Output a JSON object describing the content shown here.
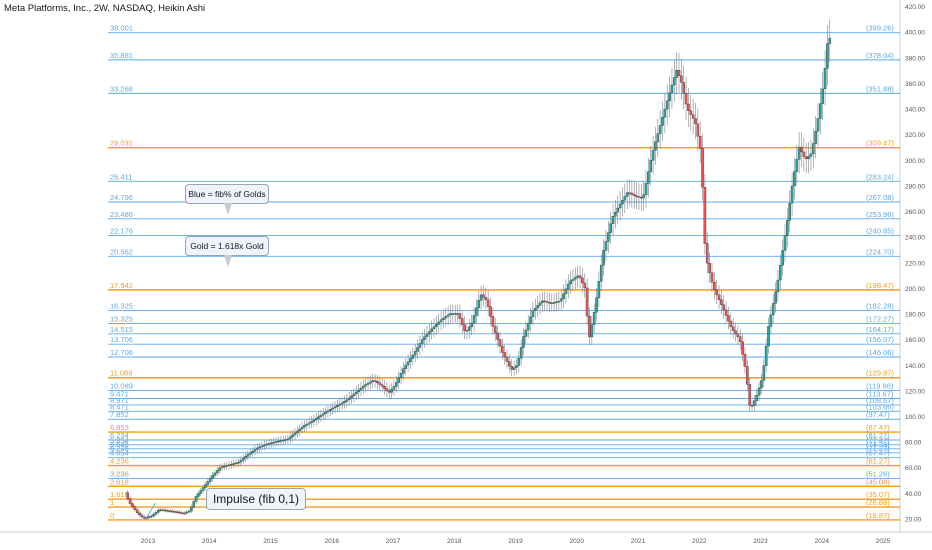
{
  "title": "Meta Platforms, Inc., 2W, NASDAQ, Heikin Ashi",
  "annotations": {
    "blue_note": "Blue = fib% of Golds",
    "gold_note": "Gold = 1.618x Gold",
    "impulse_note": "Impulse (fib 0,1)"
  },
  "colors": {
    "gold": "#f59c1a",
    "blue": "#5ea9e6",
    "up_candle": "#26a69a",
    "down_candle": "#ef5350",
    "axis_text": "#555555"
  },
  "chart_data": {
    "type": "candlestick",
    "title": "Meta Platforms, Inc., 2W, NASDAQ, Heikin Ashi",
    "xlabel": "",
    "ylabel": "",
    "x_ticks": [
      "2013",
      "2014",
      "2015",
      "2016",
      "2017",
      "2018",
      "2019",
      "2020",
      "2021",
      "2022",
      "2023",
      "2024",
      "2025"
    ],
    "y_ticks": [
      "20.00",
      "40.00",
      "60.00",
      "80.00",
      "100.00",
      "120.00",
      "140.00",
      "160.00",
      "180.00",
      "200.00",
      "220.00",
      "240.00",
      "260.00",
      "280.00",
      "300.00",
      "320.00",
      "340.00",
      "360.00",
      "380.00",
      "400.00",
      "420.00"
    ],
    "ylim": [
      11,
      424
    ],
    "xlim": [
      2012.6,
      2025.45
    ],
    "grid": false,
    "fib_levels": [
      {
        "ratio": "38.001",
        "price": 399.26,
        "price_label": "(399.26)",
        "color": "blue"
      },
      {
        "ratio": "35.881",
        "price": 378.04,
        "price_label": "(378.04)",
        "color": "blue"
      },
      {
        "ratio": "33.268",
        "price": 351.88,
        "price_label": "(351.88)",
        "color": "blue"
      },
      {
        "ratio": "29.031",
        "price": 309.47,
        "price_label": "(309.47)",
        "color": "gold"
      },
      {
        "ratio": "26.411",
        "price": 283.24,
        "price_label": "(283.24)",
        "color": "blue"
      },
      {
        "ratio": "24.796",
        "price": 267.08,
        "price_label": "(267.08)",
        "color": "blue"
      },
      {
        "ratio": "23.486",
        "price": 253.96,
        "price_label": "(253.96)",
        "color": "blue"
      },
      {
        "ratio": "22.176",
        "price": 240.85,
        "price_label": "(240.85)",
        "color": "blue"
      },
      {
        "ratio": "20.562",
        "price": 224.7,
        "price_label": "(224.70)",
        "color": "blue"
      },
      {
        "ratio": "17.942",
        "price": 198.47,
        "price_label": "(198.47)",
        "color": "gold"
      },
      {
        "ratio": "16.325",
        "price": 182.28,
        "price_label": "(182.28)",
        "color": "blue"
      },
      {
        "ratio": "15.325",
        "price": 172.27,
        "price_label": "(172.27)",
        "color": "blue"
      },
      {
        "ratio": "14.515",
        "price": 164.17,
        "price_label": "(164.17)",
        "color": "blue"
      },
      {
        "ratio": "13.706",
        "price": 156.07,
        "price_label": "(156.07)",
        "color": "blue"
      },
      {
        "ratio": "12.706",
        "price": 146.06,
        "price_label": "(146.06)",
        "color": "blue"
      },
      {
        "ratio": "11.089",
        "price": 129.87,
        "price_label": "(129.87)",
        "color": "gold"
      },
      {
        "ratio": "10.089",
        "price": 119.86,
        "price_label": "(119.86)",
        "color": "blue"
      },
      {
        "ratio": "9.471",
        "price": 113.67,
        "price_label": "(113.67)",
        "color": "blue"
      },
      {
        "ratio": "8.971",
        "price": 108.67,
        "price_label": "(108.67)",
        "color": "blue"
      },
      {
        "ratio": "8.471",
        "price": 103.66,
        "price_label": "(103.66)",
        "color": "blue"
      },
      {
        "ratio": "7.852",
        "price": 97.47,
        "price_label": "(97.47)",
        "color": "blue"
      },
      {
        "ratio": "6.853",
        "price": 87.47,
        "price_label": "(87.47)",
        "color": "gold"
      },
      {
        "ratio": "6.234",
        "price": 81.27,
        "price_label": "(81.27)",
        "color": "blue"
      },
      {
        "ratio": "5.854",
        "price": 77.47,
        "price_label": "(77.47)",
        "color": "blue"
      },
      {
        "ratio": "5.545",
        "price": 74.38,
        "price_label": "(74.38)",
        "color": "blue"
      },
      {
        "ratio": "5.236",
        "price": 71.27,
        "price_label": "(71.27)",
        "color": "blue"
      },
      {
        "ratio": "4.854",
        "price": 67.47,
        "price_label": "(67.47)",
        "color": "blue"
      },
      {
        "ratio": "4.236",
        "price": 61.27,
        "price_label": "(61.27)",
        "color": "gold"
      },
      {
        "ratio": "3.236",
        "price": 51.26,
        "price_label": "(51.26)",
        "color": "blue"
      },
      {
        "ratio": "2.618",
        "price": 45.08,
        "price_label": "(45.08)",
        "color": "gold"
      },
      {
        "ratio": "1.618",
        "price": 35.07,
        "price_label": "(35.07)",
        "color": "gold"
      },
      {
        "ratio": "1",
        "price": 28.88,
        "price_label": "(28.88)",
        "color": "gold"
      },
      {
        "ratio": "0",
        "price": 18.87,
        "price_label": "(18.87)",
        "color": "gold"
      }
    ],
    "price_path": [
      [
        2012.65,
        40
      ],
      [
        2012.72,
        32
      ],
      [
        2012.85,
        24
      ],
      [
        2012.95,
        20
      ],
      [
        2013.08,
        22
      ],
      [
        2013.2,
        27
      ],
      [
        2013.35,
        26
      ],
      [
        2013.5,
        25
      ],
      [
        2013.6,
        24
      ],
      [
        2013.7,
        26
      ],
      [
        2013.8,
        37
      ],
      [
        2013.95,
        46
      ],
      [
        2014.08,
        54
      ],
      [
        2014.2,
        60
      ],
      [
        2014.35,
        62
      ],
      [
        2014.5,
        64
      ],
      [
        2014.65,
        70
      ],
      [
        2014.8,
        75
      ],
      [
        2014.95,
        78
      ],
      [
        2015.1,
        80
      ],
      [
        2015.3,
        82
      ],
      [
        2015.45,
        88
      ],
      [
        2015.55,
        92
      ],
      [
        2015.7,
        96
      ],
      [
        2015.82,
        100
      ],
      [
        2015.95,
        104
      ],
      [
        2016.1,
        108
      ],
      [
        2016.25,
        112
      ],
      [
        2016.4,
        118
      ],
      [
        2016.55,
        124
      ],
      [
        2016.7,
        128
      ],
      [
        2016.85,
        123
      ],
      [
        2016.95,
        118
      ],
      [
        2017.05,
        124
      ],
      [
        2017.2,
        138
      ],
      [
        2017.35,
        148
      ],
      [
        2017.5,
        160
      ],
      [
        2017.65,
        168
      ],
      [
        2017.8,
        175
      ],
      [
        2017.95,
        180
      ],
      [
        2018.08,
        180
      ],
      [
        2018.2,
        165
      ],
      [
        2018.3,
        172
      ],
      [
        2018.45,
        195
      ],
      [
        2018.55,
        190
      ],
      [
        2018.65,
        170
      ],
      [
        2018.8,
        150
      ],
      [
        2018.95,
        136
      ],
      [
        2019.05,
        140
      ],
      [
        2019.15,
        162
      ],
      [
        2019.3,
        182
      ],
      [
        2019.45,
        190
      ],
      [
        2019.6,
        188
      ],
      [
        2019.75,
        190
      ],
      [
        2019.9,
        205
      ],
      [
        2020.05,
        210
      ],
      [
        2020.15,
        200
      ],
      [
        2020.22,
        160
      ],
      [
        2020.32,
        185
      ],
      [
        2020.45,
        228
      ],
      [
        2020.6,
        255
      ],
      [
        2020.72,
        265
      ],
      [
        2020.85,
        275
      ],
      [
        2020.95,
        272
      ],
      [
        2021.1,
        270
      ],
      [
        2021.25,
        305
      ],
      [
        2021.4,
        330
      ],
      [
        2021.55,
        355
      ],
      [
        2021.65,
        370
      ],
      [
        2021.72,
        362
      ],
      [
        2021.82,
        340
      ],
      [
        2021.95,
        330
      ],
      [
        2022.05,
        305
      ],
      [
        2022.12,
        225
      ],
      [
        2022.25,
        200
      ],
      [
        2022.4,
        185
      ],
      [
        2022.55,
        168
      ],
      [
        2022.68,
        160
      ],
      [
        2022.78,
        135
      ],
      [
        2022.85,
        105
      ],
      [
        2022.95,
        115
      ],
      [
        2023.05,
        130
      ],
      [
        2023.15,
        170
      ],
      [
        2023.3,
        205
      ],
      [
        2023.45,
        250
      ],
      [
        2023.55,
        285
      ],
      [
        2023.65,
        310
      ],
      [
        2023.75,
        300
      ],
      [
        2023.85,
        305
      ],
      [
        2023.95,
        330
      ],
      [
        2024.05,
        360
      ],
      [
        2024.12,
        395
      ]
    ]
  }
}
